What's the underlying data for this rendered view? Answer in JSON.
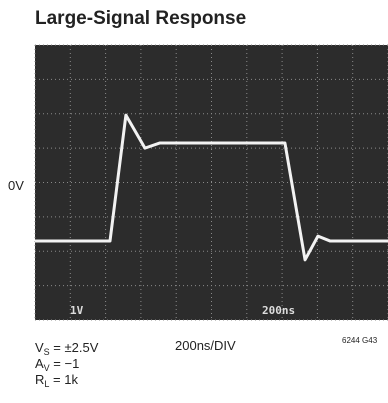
{
  "chart_data": {
    "type": "line",
    "title": "Large-Signal Response",
    "x": [
      0,
      425,
      515,
      623,
      708,
      1416,
      1530,
      1603,
      1671,
      2000
    ],
    "series": [
      {
        "color": "#f2f2f2",
        "values": [
          -1.7,
          -1.7,
          1.96,
          1.0,
          1.15,
          1.15,
          -2.25,
          -1.56,
          -1.7,
          -1.7
        ]
      }
    ],
    "xlim": [
      0,
      2000
    ],
    "xticks": [
      0,
      200,
      400,
      600,
      800,
      1000,
      1200,
      1400,
      1600,
      1800,
      2000
    ],
    "ylim": [
      -4,
      4
    ],
    "yticks": [
      -4,
      -3,
      -2,
      -1,
      0,
      1,
      2,
      3,
      4
    ],
    "grid": true,
    "annotations": {
      "zero": "0V",
      "scale_v": "1V",
      "scale_t": "200ns",
      "time_div": "200ns/DIV",
      "fig_id": "6244 G43"
    },
    "conditions": [
      {
        "main": "V",
        "sub": "S",
        "rest": " = ±2.5V"
      },
      {
        "main": "A",
        "sub": "V",
        "rest": " = −1"
      },
      {
        "main": "R",
        "sub": "L",
        "rest": " = 1k"
      }
    ]
  }
}
